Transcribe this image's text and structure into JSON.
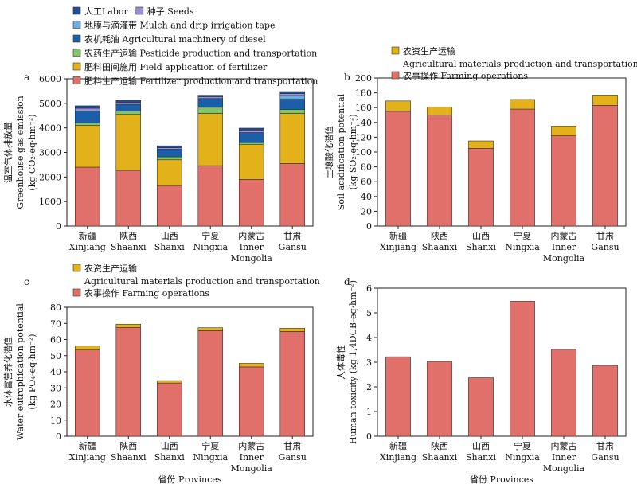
{
  "colors": {
    "labor": "#1f4e9a",
    "seeds": "#9b8fd6",
    "mulch": "#6aaee0",
    "machinery": "#1a5fa8",
    "pesticide": "#7ec46a",
    "field_app": "#e3b21a",
    "fert_prod": "#e07069",
    "ag_materials": "#e3b21a",
    "farming_ops": "#e07069",
    "human_tox": "#e07069"
  },
  "chart_data": [
    {
      "id": "a",
      "panel_label": "a",
      "type": "bar",
      "stacked": true,
      "ylabel_cn": "温室气体排放量",
      "ylabel_en": "Greenhouse gas emission",
      "ylabel_unit": "(kg CO₂-eq·hm⁻²)",
      "xlabel": "",
      "ylim": [
        0,
        6000
      ],
      "yticks": [
        0,
        1000,
        2000,
        3000,
        4000,
        5000,
        6000
      ],
      "categories": [
        [
          "新疆",
          "Xinjiang"
        ],
        [
          "陕西",
          "Shaanxi"
        ],
        [
          "山西",
          "Shanxi"
        ],
        [
          "宁夏",
          "Ningxia"
        ],
        [
          "内蒙古",
          "Inner",
          "Mongolia"
        ],
        [
          "甘肃",
          "Gansu"
        ]
      ],
      "series": [
        {
          "name": "肥料生产运输 Fertilizer production and transportation",
          "color_key": "fert_prod",
          "values": [
            2400,
            2270,
            1650,
            2460,
            1900,
            2550
          ]
        },
        {
          "name": "肥料田间施用 Field application of fertilizer",
          "color_key": "field_app",
          "values": [
            1700,
            2280,
            1050,
            2130,
            1420,
            2040
          ]
        },
        {
          "name": "农药生产运输 Pesticide production and transportation",
          "color_key": "pesticide",
          "values": [
            100,
            130,
            120,
            250,
            80,
            160
          ]
        },
        {
          "name": "农机耗油 Agricultural machinery of diesel",
          "color_key": "machinery",
          "values": [
            480,
            280,
            310,
            360,
            410,
            420
          ]
        },
        {
          "name": "地膜与滴灌带 Mulch and drip irrigation tape",
          "color_key": "mulch",
          "values": [
            0,
            0,
            0,
            0,
            0,
            150
          ]
        },
        {
          "name": "种子 Seeds",
          "color_key": "seeds",
          "values": [
            120,
            80,
            60,
            70,
            100,
            80
          ]
        },
        {
          "name": "人工Labor",
          "color_key": "labor",
          "values": [
            100,
            80,
            80,
            60,
            80,
            80
          ]
        }
      ],
      "legend": [
        [
          {
            "label": "人工Labor",
            "color_key": "labor"
          },
          {
            "label": "种子 Seeds",
            "color_key": "seeds"
          }
        ],
        [
          {
            "label": "地膜与滴灌带 Mulch and drip irrigation tape",
            "color_key": "mulch"
          }
        ],
        [
          {
            "label": "农机耗油 Agricultural machinery of diesel",
            "color_key": "machinery"
          }
        ],
        [
          {
            "label": "农药生产运输 Pesticide production and transportation",
            "color_key": "pesticide"
          }
        ],
        [
          {
            "label": "肥料田间施用 Field application of fertilizer",
            "color_key": "field_app"
          }
        ],
        [
          {
            "label": "肥料生产运输 Fertilizer production and transportation",
            "color_key": "fert_prod"
          }
        ]
      ]
    },
    {
      "id": "b",
      "panel_label": "b",
      "type": "bar",
      "stacked": true,
      "ylabel_cn": "土壤酸化潜值",
      "ylabel_en": "Soil acidification potential",
      "ylabel_unit": "(kg SO₂-eq·hm⁻²)",
      "xlabel": "",
      "ylim": [
        0,
        200
      ],
      "yticks": [
        0,
        20,
        40,
        60,
        80,
        100,
        120,
        140,
        160,
        180,
        200
      ],
      "categories": [
        [
          "新疆",
          "Xinjiang"
        ],
        [
          "陕西",
          "Shaanxi"
        ],
        [
          "山西",
          "Shanxi"
        ],
        [
          "宁夏",
          "Ningxia"
        ],
        [
          "内蒙古",
          "Inner",
          "Mongolia"
        ],
        [
          "甘肃",
          "Gansu"
        ]
      ],
      "series": [
        {
          "name": "农事操作 Farming operations",
          "color_key": "farming_ops",
          "values": [
            155,
            150,
            105,
            158,
            122,
            163
          ]
        },
        {
          "name": "农资生产运输 Agricultural materials production and transportation",
          "color_key": "ag_materials",
          "values": [
            14,
            11,
            10,
            13,
            13,
            14
          ]
        }
      ],
      "legend": [
        [
          {
            "label": "农资生产运输",
            "sub": "Agricultural materials production and transportation",
            "color_key": "ag_materials"
          }
        ],
        [
          {
            "label": "农事操作 Farming operations",
            "color_key": "farming_ops"
          }
        ]
      ]
    },
    {
      "id": "c",
      "panel_label": "c",
      "type": "bar",
      "stacked": true,
      "ylabel_cn": "水体富营养化潜值",
      "ylabel_en": "Water eutrophication potential",
      "ylabel_unit": "(kg PO₄-eq·hm⁻²)",
      "xlabel": "省份 Provinces",
      "ylim": [
        0,
        80
      ],
      "yticks": [
        0,
        10,
        20,
        30,
        40,
        50,
        60,
        70,
        80
      ],
      "categories": [
        [
          "新疆",
          "Xinjiang"
        ],
        [
          "陕西",
          "Shaanxi"
        ],
        [
          "山西",
          "Shanxi"
        ],
        [
          "宁夏",
          "Ningxia"
        ],
        [
          "内蒙古",
          "Inner",
          "Mongolia"
        ],
        [
          "甘肃",
          "Gansu"
        ]
      ],
      "series": [
        {
          "name": "农事操作 Farming operations",
          "color_key": "farming_ops",
          "values": [
            53.5,
            67.5,
            33,
            65.5,
            43,
            65
          ]
        },
        {
          "name": "农资生产运输 Agricultural materials production and transportation",
          "color_key": "ag_materials",
          "values": [
            2.5,
            2,
            1.5,
            1.8,
            2.2,
            2
          ]
        }
      ],
      "legend": [
        [
          {
            "label": "农资生产运输",
            "sub": "Agricultural materials production and transportation",
            "color_key": "ag_materials"
          }
        ],
        [
          {
            "label": "农事操作 Farming operations",
            "color_key": "farming_ops"
          }
        ]
      ]
    },
    {
      "id": "d",
      "panel_label": "d",
      "type": "bar",
      "stacked": false,
      "ylabel_cn": "人体毒性",
      "ylabel_en": "Human toxicity (kg 1,4DCB-eq·hm⁻²)",
      "ylabel_unit": "",
      "xlabel": "省份 Provinces",
      "ylim": [
        0,
        6
      ],
      "yticks": [
        0,
        1,
        2,
        3,
        4,
        5,
        6
      ],
      "categories": [
        [
          "新疆",
          "Xinjiang"
        ],
        [
          "陕西",
          "Shaanxi"
        ],
        [
          "山西",
          "Shanxi"
        ],
        [
          "宁夏",
          "Ningxia"
        ],
        [
          "内蒙古",
          "Inner",
          "Mongolia"
        ],
        [
          "甘肃",
          "Gansu"
        ]
      ],
      "series": [
        {
          "name": "",
          "color_key": "human_tox",
          "values": [
            3.22,
            3.03,
            2.37,
            5.47,
            3.52,
            2.87
          ]
        }
      ],
      "legend": []
    }
  ]
}
